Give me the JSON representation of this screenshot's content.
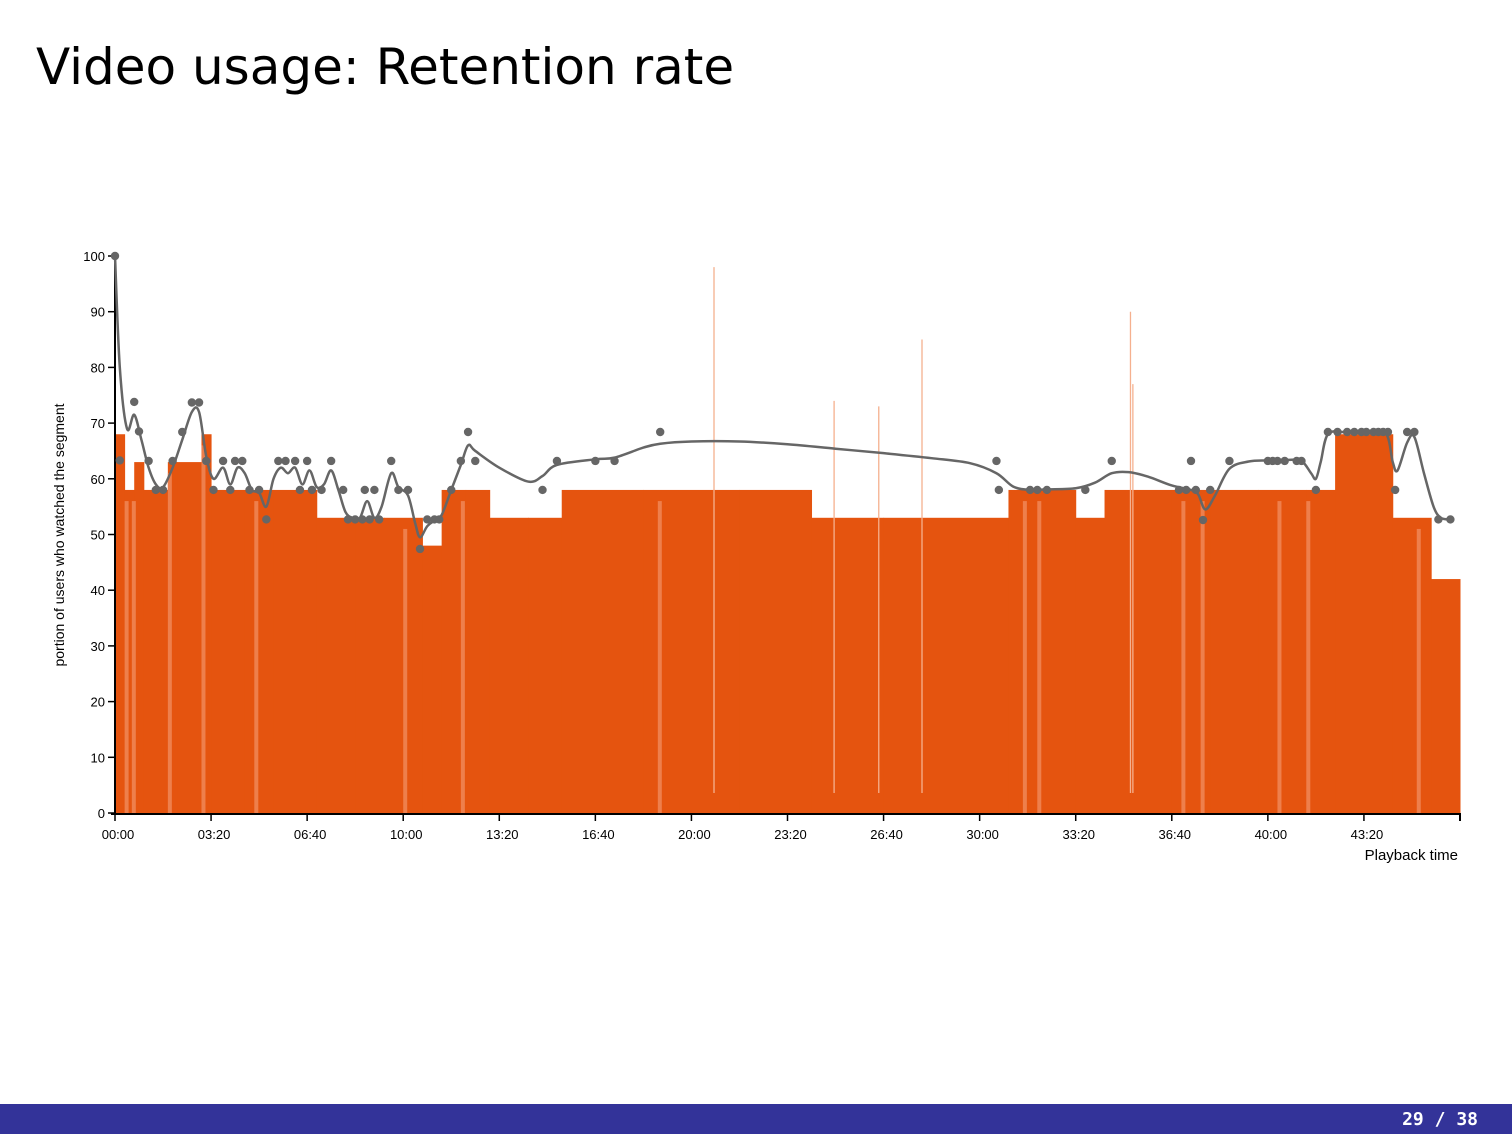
{
  "slide": {
    "title": "Video usage: Retention rate",
    "page_current": "29",
    "page_separator": "/",
    "page_total": "38"
  },
  "colors": {
    "bar": "#E5540F",
    "bar_light": "#F08A5B",
    "spike": "#F5B08E",
    "curve": "#666666",
    "point": "#666666",
    "axis": "#000000",
    "footer": "#333399"
  },
  "chart_data": {
    "type": "bar",
    "title": "",
    "xlabel": "Playback time",
    "ylabel": "portion of users who watched the segment",
    "x_unit": "seconds",
    "xlim": [
      0,
      2800
    ],
    "ylim": [
      0,
      100
    ],
    "y_ticks": [
      0,
      10,
      20,
      30,
      40,
      50,
      60,
      70,
      80,
      90,
      100
    ],
    "x_ticks": [
      {
        "value": 0,
        "label": "00:00"
      },
      {
        "value": 200,
        "label": "03:20"
      },
      {
        "value": 400,
        "label": "06:40"
      },
      {
        "value": 600,
        "label": "10:00"
      },
      {
        "value": 800,
        "label": "13:20"
      },
      {
        "value": 1000,
        "label": "16:40"
      },
      {
        "value": 1200,
        "label": "20:00"
      },
      {
        "value": 1400,
        "label": "23:20"
      },
      {
        "value": 1600,
        "label": "26:40"
      },
      {
        "value": 1800,
        "label": "30:00"
      },
      {
        "value": 2000,
        "label": "33:20"
      },
      {
        "value": 2200,
        "label": "36:40"
      },
      {
        "value": 2400,
        "label": "40:00"
      },
      {
        "value": 2600,
        "label": "43:20"
      }
    ],
    "grid": false,
    "bar_levels": [
      {
        "x_start": 0,
        "x_end": 20,
        "value": 68
      },
      {
        "x_start": 20,
        "x_end": 40,
        "value": 58
      },
      {
        "x_start": 40,
        "x_end": 60,
        "value": 63
      },
      {
        "x_start": 60,
        "x_end": 110,
        "value": 58
      },
      {
        "x_start": 110,
        "x_end": 130,
        "value": 63
      },
      {
        "x_start": 130,
        "x_end": 180,
        "value": 63
      },
      {
        "x_start": 180,
        "x_end": 200,
        "value": 68
      },
      {
        "x_start": 200,
        "x_end": 270,
        "value": 58
      },
      {
        "x_start": 270,
        "x_end": 330,
        "value": 58
      },
      {
        "x_start": 330,
        "x_end": 380,
        "value": 58
      },
      {
        "x_start": 380,
        "x_end": 420,
        "value": 58
      },
      {
        "x_start": 420,
        "x_end": 500,
        "value": 53
      },
      {
        "x_start": 500,
        "x_end": 560,
        "value": 53
      },
      {
        "x_start": 560,
        "x_end": 640,
        "value": 53
      },
      {
        "x_start": 640,
        "x_end": 680,
        "value": 48
      },
      {
        "x_start": 680,
        "x_end": 730,
        "value": 58
      },
      {
        "x_start": 730,
        "x_end": 780,
        "value": 58
      },
      {
        "x_start": 780,
        "x_end": 860,
        "value": 53
      },
      {
        "x_start": 860,
        "x_end": 930,
        "value": 53
      },
      {
        "x_start": 930,
        "x_end": 1100,
        "value": 58
      },
      {
        "x_start": 1100,
        "x_end": 1300,
        "value": 58
      },
      {
        "x_start": 1300,
        "x_end": 1450,
        "value": 58
      },
      {
        "x_start": 1450,
        "x_end": 1600,
        "value": 53
      },
      {
        "x_start": 1600,
        "x_end": 1860,
        "value": 53
      },
      {
        "x_start": 1860,
        "x_end": 2000,
        "value": 58
      },
      {
        "x_start": 2000,
        "x_end": 2060,
        "value": 53
      },
      {
        "x_start": 2060,
        "x_end": 2200,
        "value": 58
      },
      {
        "x_start": 2200,
        "x_end": 2280,
        "value": 58
      },
      {
        "x_start": 2280,
        "x_end": 2380,
        "value": 58
      },
      {
        "x_start": 2380,
        "x_end": 2480,
        "value": 58
      },
      {
        "x_start": 2480,
        "x_end": 2540,
        "value": 58
      },
      {
        "x_start": 2540,
        "x_end": 2660,
        "value": 68
      },
      {
        "x_start": 2660,
        "x_end": 2740,
        "value": 53
      },
      {
        "x_start": 2740,
        "x_end": 2800,
        "value": 42
      }
    ],
    "spikes": [
      {
        "x": 1247,
        "value": 98
      },
      {
        "x": 1680,
        "value": 85
      },
      {
        "x": 2114,
        "value": 90
      },
      {
        "x": 2119,
        "value": 77
      },
      {
        "x": 1497,
        "value": 74
      },
      {
        "x": 1590,
        "value": 73
      }
    ],
    "points": [
      {
        "x": 0,
        "y": 100
      },
      {
        "x": 10,
        "y": 63.3
      },
      {
        "x": 40,
        "y": 73.8
      },
      {
        "x": 50,
        "y": 68.5
      },
      {
        "x": 70,
        "y": 63.2
      },
      {
        "x": 85,
        "y": 58
      },
      {
        "x": 100,
        "y": 58
      },
      {
        "x": 120,
        "y": 63.2
      },
      {
        "x": 140,
        "y": 68.4
      },
      {
        "x": 160,
        "y": 73.7
      },
      {
        "x": 175,
        "y": 73.7
      },
      {
        "x": 190,
        "y": 63.2
      },
      {
        "x": 205,
        "y": 58
      },
      {
        "x": 225,
        "y": 63.2
      },
      {
        "x": 240,
        "y": 58
      },
      {
        "x": 250,
        "y": 63.2
      },
      {
        "x": 265,
        "y": 63.2
      },
      {
        "x": 280,
        "y": 58
      },
      {
        "x": 300,
        "y": 58
      },
      {
        "x": 315,
        "y": 52.7
      },
      {
        "x": 340,
        "y": 63.2
      },
      {
        "x": 355,
        "y": 63.2
      },
      {
        "x": 375,
        "y": 63.2
      },
      {
        "x": 385,
        "y": 58
      },
      {
        "x": 400,
        "y": 63.2
      },
      {
        "x": 410,
        "y": 58
      },
      {
        "x": 430,
        "y": 58
      },
      {
        "x": 450,
        "y": 63.2
      },
      {
        "x": 475,
        "y": 58
      },
      {
        "x": 485,
        "y": 52.7
      },
      {
        "x": 500,
        "y": 52.7
      },
      {
        "x": 515,
        "y": 52.7
      },
      {
        "x": 520,
        "y": 58
      },
      {
        "x": 530,
        "y": 52.7
      },
      {
        "x": 540,
        "y": 58
      },
      {
        "x": 550,
        "y": 52.7
      },
      {
        "x": 575,
        "y": 63.2
      },
      {
        "x": 590,
        "y": 58
      },
      {
        "x": 610,
        "y": 58
      },
      {
        "x": 635,
        "y": 47.4
      },
      {
        "x": 650,
        "y": 52.7
      },
      {
        "x": 665,
        "y": 52.7
      },
      {
        "x": 675,
        "y": 52.7
      },
      {
        "x": 700,
        "y": 58
      },
      {
        "x": 720,
        "y": 63.2
      },
      {
        "x": 735,
        "y": 68.4
      },
      {
        "x": 750,
        "y": 63.2
      },
      {
        "x": 890,
        "y": 58
      },
      {
        "x": 920,
        "y": 63.2
      },
      {
        "x": 1000,
        "y": 63.2
      },
      {
        "x": 1040,
        "y": 63.2
      },
      {
        "x": 1135,
        "y": 68.4
      },
      {
        "x": 1835,
        "y": 63.2
      },
      {
        "x": 1840,
        "y": 58
      },
      {
        "x": 1905,
        "y": 58
      },
      {
        "x": 1920,
        "y": 58
      },
      {
        "x": 1940,
        "y": 58
      },
      {
        "x": 2020,
        "y": 58
      },
      {
        "x": 2075,
        "y": 63.2
      },
      {
        "x": 2215,
        "y": 58
      },
      {
        "x": 2230,
        "y": 58
      },
      {
        "x": 2240,
        "y": 63.2
      },
      {
        "x": 2250,
        "y": 58
      },
      {
        "x": 2265,
        "y": 52.6
      },
      {
        "x": 2280,
        "y": 58
      },
      {
        "x": 2320,
        "y": 63.2
      },
      {
        "x": 2400,
        "y": 63.2
      },
      {
        "x": 2410,
        "y": 63.2
      },
      {
        "x": 2420,
        "y": 63.2
      },
      {
        "x": 2435,
        "y": 63.2
      },
      {
        "x": 2460,
        "y": 63.2
      },
      {
        "x": 2470,
        "y": 63.2
      },
      {
        "x": 2500,
        "y": 58
      },
      {
        "x": 2525,
        "y": 68.4
      },
      {
        "x": 2545,
        "y": 68.4
      },
      {
        "x": 2565,
        "y": 68.4
      },
      {
        "x": 2580,
        "y": 68.4
      },
      {
        "x": 2595,
        "y": 68.4
      },
      {
        "x": 2605,
        "y": 68.4
      },
      {
        "x": 2620,
        "y": 68.4
      },
      {
        "x": 2630,
        "y": 68.4
      },
      {
        "x": 2640,
        "y": 68.4
      },
      {
        "x": 2650,
        "y": 68.4
      },
      {
        "x": 2665,
        "y": 58
      },
      {
        "x": 2690,
        "y": 68.4
      },
      {
        "x": 2705,
        "y": 68.4
      },
      {
        "x": 2755,
        "y": 52.7
      },
      {
        "x": 2780,
        "y": 52.7
      }
    ],
    "curve": [
      {
        "x": 0,
        "y": 100
      },
      {
        "x": 10,
        "y": 80
      },
      {
        "x": 25,
        "y": 69
      },
      {
        "x": 40,
        "y": 71.5
      },
      {
        "x": 55,
        "y": 67
      },
      {
        "x": 70,
        "y": 62
      },
      {
        "x": 85,
        "y": 59
      },
      {
        "x": 100,
        "y": 58.5
      },
      {
        "x": 120,
        "y": 62
      },
      {
        "x": 140,
        "y": 67
      },
      {
        "x": 160,
        "y": 72
      },
      {
        "x": 175,
        "y": 72
      },
      {
        "x": 190,
        "y": 64
      },
      {
        "x": 205,
        "y": 60
      },
      {
        "x": 225,
        "y": 62
      },
      {
        "x": 240,
        "y": 59
      },
      {
        "x": 255,
        "y": 62
      },
      {
        "x": 270,
        "y": 61
      },
      {
        "x": 285,
        "y": 58
      },
      {
        "x": 300,
        "y": 57.5
      },
      {
        "x": 315,
        "y": 55
      },
      {
        "x": 330,
        "y": 60
      },
      {
        "x": 345,
        "y": 62
      },
      {
        "x": 360,
        "y": 61
      },
      {
        "x": 375,
        "y": 62
      },
      {
        "x": 390,
        "y": 59
      },
      {
        "x": 405,
        "y": 61.5
      },
      {
        "x": 420,
        "y": 58.5
      },
      {
        "x": 435,
        "y": 59
      },
      {
        "x": 450,
        "y": 61.5
      },
      {
        "x": 465,
        "y": 58
      },
      {
        "x": 480,
        "y": 54
      },
      {
        "x": 495,
        "y": 53
      },
      {
        "x": 510,
        "y": 53
      },
      {
        "x": 525,
        "y": 56
      },
      {
        "x": 540,
        "y": 53
      },
      {
        "x": 555,
        "y": 55
      },
      {
        "x": 575,
        "y": 61
      },
      {
        "x": 590,
        "y": 58.5
      },
      {
        "x": 610,
        "y": 57
      },
      {
        "x": 625,
        "y": 52
      },
      {
        "x": 635,
        "y": 49.5
      },
      {
        "x": 650,
        "y": 51.5
      },
      {
        "x": 665,
        "y": 52.5
      },
      {
        "x": 680,
        "y": 53.5
      },
      {
        "x": 700,
        "y": 58
      },
      {
        "x": 720,
        "y": 62.5
      },
      {
        "x": 735,
        "y": 66
      },
      {
        "x": 750,
        "y": 65
      },
      {
        "x": 800,
        "y": 62
      },
      {
        "x": 860,
        "y": 59.5
      },
      {
        "x": 890,
        "y": 60.5
      },
      {
        "x": 920,
        "y": 62.5
      },
      {
        "x": 1000,
        "y": 63.5
      },
      {
        "x": 1040,
        "y": 63.8
      },
      {
        "x": 1100,
        "y": 65.6
      },
      {
        "x": 1135,
        "y": 66.3
      },
      {
        "x": 1200,
        "y": 66.7
      },
      {
        "x": 1300,
        "y": 66.7
      },
      {
        "x": 1400,
        "y": 66.2
      },
      {
        "x": 1500,
        "y": 65.4
      },
      {
        "x": 1600,
        "y": 64.6
      },
      {
        "x": 1700,
        "y": 63.7
      },
      {
        "x": 1780,
        "y": 62.8
      },
      {
        "x": 1835,
        "y": 61
      },
      {
        "x": 1870,
        "y": 58.6
      },
      {
        "x": 1905,
        "y": 58
      },
      {
        "x": 1940,
        "y": 58.1
      },
      {
        "x": 2000,
        "y": 58.3
      },
      {
        "x": 2040,
        "y": 59.3
      },
      {
        "x": 2075,
        "y": 61
      },
      {
        "x": 2110,
        "y": 61.2
      },
      {
        "x": 2150,
        "y": 60.4
      },
      {
        "x": 2200,
        "y": 58.8
      },
      {
        "x": 2240,
        "y": 58
      },
      {
        "x": 2255,
        "y": 57.2
      },
      {
        "x": 2270,
        "y": 54.5
      },
      {
        "x": 2290,
        "y": 57
      },
      {
        "x": 2320,
        "y": 61.8
      },
      {
        "x": 2360,
        "y": 63.1
      },
      {
        "x": 2400,
        "y": 63.3
      },
      {
        "x": 2440,
        "y": 63.4
      },
      {
        "x": 2470,
        "y": 63.2
      },
      {
        "x": 2490,
        "y": 61
      },
      {
        "x": 2500,
        "y": 60
      },
      {
        "x": 2510,
        "y": 63
      },
      {
        "x": 2525,
        "y": 68
      },
      {
        "x": 2560,
        "y": 68.4
      },
      {
        "x": 2600,
        "y": 68.4
      },
      {
        "x": 2645,
        "y": 68.2
      },
      {
        "x": 2660,
        "y": 63
      },
      {
        "x": 2670,
        "y": 61.5
      },
      {
        "x": 2690,
        "y": 66.5
      },
      {
        "x": 2705,
        "y": 67.5
      },
      {
        "x": 2725,
        "y": 61
      },
      {
        "x": 2745,
        "y": 55
      },
      {
        "x": 2760,
        "y": 53
      },
      {
        "x": 2780,
        "y": 52.7
      }
    ]
  }
}
